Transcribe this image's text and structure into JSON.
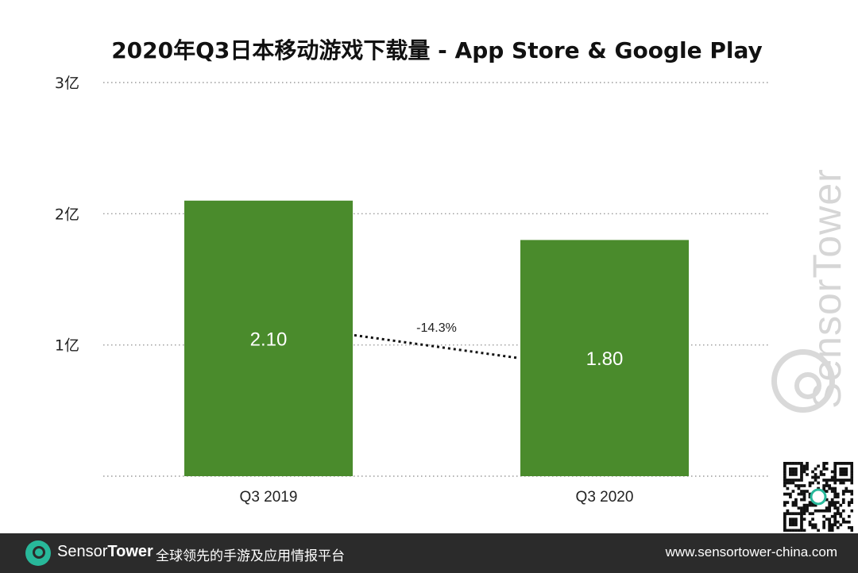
{
  "chart_data": {
    "type": "bar",
    "title": "2020年Q3日本移动游戏下载量 - App Store & Google Play",
    "categories": [
      "Q3  2019",
      "Q3 2020"
    ],
    "values": [
      2.1,
      1.8
    ],
    "value_labels": [
      "2.10",
      "1.80"
    ],
    "y_ticks": [
      {
        "value": 1,
        "label": "1亿"
      },
      {
        "value": 2,
        "label": "2亿"
      },
      {
        "value": 3,
        "label": "3亿"
      }
    ],
    "ylim": [
      0,
      3
    ],
    "xlabel": "",
    "ylabel": "",
    "grid": "dotted horizontal",
    "bar_color": "#4a8b2c",
    "annotation": {
      "text": "-14.3%",
      "style": "dotted connector between bar tops"
    }
  },
  "watermark": {
    "text": "SensorTower"
  },
  "footer": {
    "brand_sensor": "Sensor",
    "brand_tower": "Tower",
    "tagline": "全球领先的手游及应用情报平台",
    "url": "www.sensortower-china.com",
    "background": "#2b2b2b",
    "logo_color": "#28b89a"
  }
}
